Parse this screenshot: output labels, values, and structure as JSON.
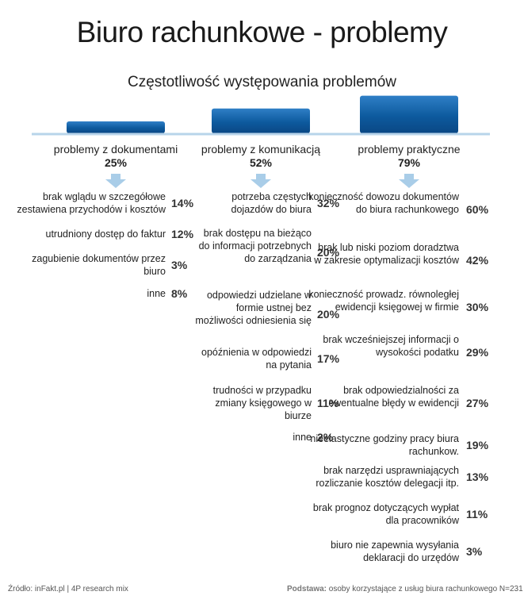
{
  "title": "Biuro rachunkowe - problemy",
  "subtitle": "Częstotliwość występowania problemów",
  "chart_data": {
    "type": "bar",
    "categories": [
      "problemy z dokumentami",
      "problemy z komunikacją",
      "problemy praktyczne"
    ],
    "values": [
      25,
      52,
      79
    ],
    "value_labels": [
      "25%",
      "52%",
      "79%"
    ],
    "ylim": [
      0,
      100
    ],
    "accent_color": "#0d5a9e",
    "groups": [
      {
        "items": [
          {
            "label": "brak wglądu w szczegółowe zestawiena przychodów i kosztów",
            "value": "14%"
          },
          {
            "label": "utrudniony dostęp do faktur",
            "value": "12%"
          },
          {
            "label": "zagubienie dokumentów przez biuro",
            "value": "3%"
          },
          {
            "label": "inne",
            "value": "8%"
          }
        ]
      },
      {
        "items": [
          {
            "label": "potrzeba częstych dojazdów do biura",
            "value": "32%"
          },
          {
            "label": "brak dostępu na bieżąco do informacji potrzebnych do zarządzania",
            "value": "20%"
          },
          {
            "label": "odpowiedzi udzielane w formie ustnej bez możliwości odniesienia się",
            "value": "20%"
          },
          {
            "label": "opóźnienia w odpowiedzi na pytania",
            "value": "17%"
          },
          {
            "label": "trudności w przypadku zmiany księgowego w biurze",
            "value": "11%"
          },
          {
            "label": "inne",
            "value": "2%"
          }
        ]
      },
      {
        "items": [
          {
            "label": "konieczność dowozu dokumentów do biura rachunkowego",
            "value": "60%"
          },
          {
            "label": "brak lub niski poziom doradztwa w zakresie optymalizacji kosztów",
            "value": "42%"
          },
          {
            "label": "konieczność prowadz. równoległej ewidencji księgowej w firmie",
            "value": "30%"
          },
          {
            "label": "brak wcześniejszej informacji o wysokości podatku",
            "value": "29%"
          },
          {
            "label": "brak odpowiedzialności za ewentualne błędy w ewidencji",
            "value": "27%"
          },
          {
            "label": "nieelastyczne godziny pracy biura rachunkow.",
            "value": "19%"
          },
          {
            "label": "brak narzędzi usprawniających rozliczanie kosztów delegacji itp.",
            "value": "13%"
          },
          {
            "label": "brak prognoz dotyczących wypłat dla pracowników",
            "value": "11%"
          },
          {
            "label": "biuro nie zapewnia wysyłania deklaracji do urzędów",
            "value": "3%"
          }
        ]
      }
    ]
  },
  "footer": {
    "source_label": "Źródło:",
    "source_text": "inFakt.pl | 4P research mix",
    "base_label": "Podstawa:",
    "base_text": "osoby korzystające z usług biura rachunkowego N=231"
  }
}
